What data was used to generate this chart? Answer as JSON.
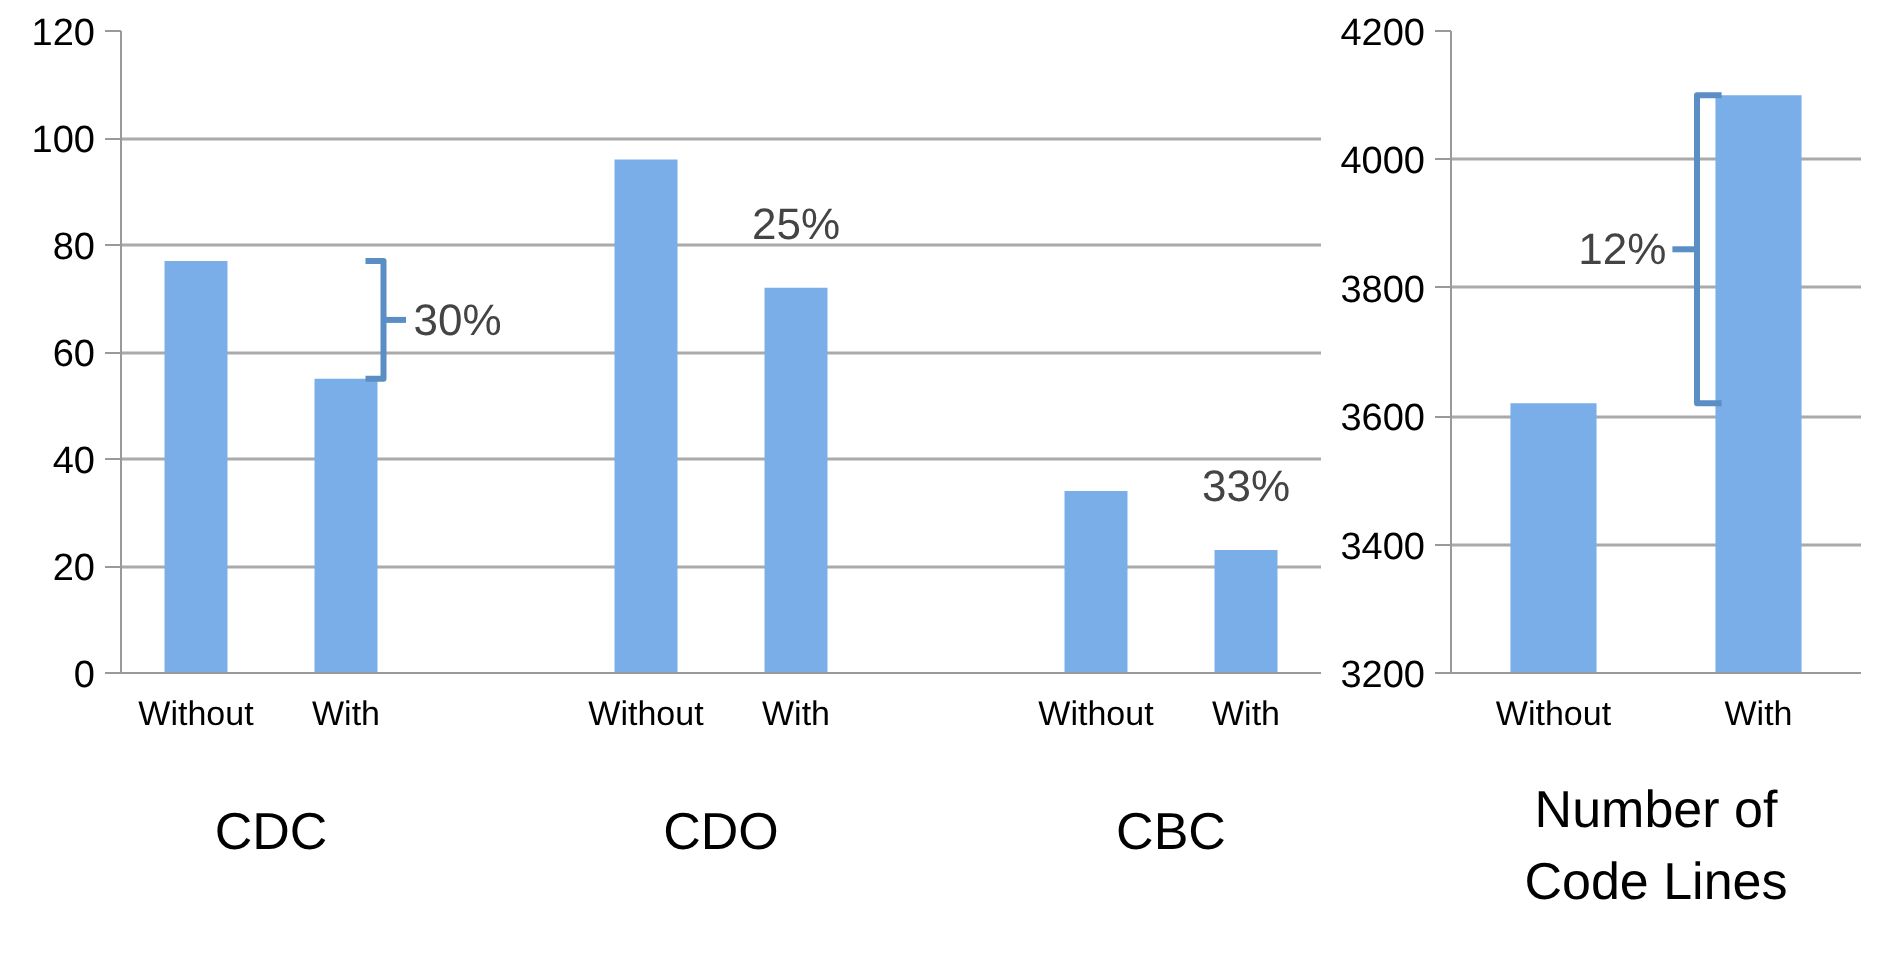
{
  "chart_data": [
    {
      "type": "bar",
      "categories": [
        "Without",
        "With",
        null,
        "Without",
        "With",
        null,
        "Without",
        "With"
      ],
      "values": [
        77,
        55,
        null,
        96,
        72,
        null,
        34,
        23
      ],
      "color": "#7aaee8",
      "ylim": [
        0,
        120
      ],
      "yticks": [
        0,
        20,
        40,
        60,
        80,
        100,
        120
      ],
      "grid": "y",
      "annotations": [
        "CDC",
        "CDO",
        "CBC",
        "30%",
        "25%",
        "33%"
      ]
    },
    {
      "type": "bar",
      "categories": [
        "Without",
        "With"
      ],
      "values": [
        3620,
        4100
      ],
      "color": "#7aaee8",
      "ylim": [
        3200,
        4200
      ],
      "yticks": [
        3200,
        3400,
        3600,
        3800,
        4000,
        4200
      ],
      "grid": "y",
      "xlabel": "Number of Code Lines",
      "annotations": [
        "12%"
      ]
    }
  ]
}
